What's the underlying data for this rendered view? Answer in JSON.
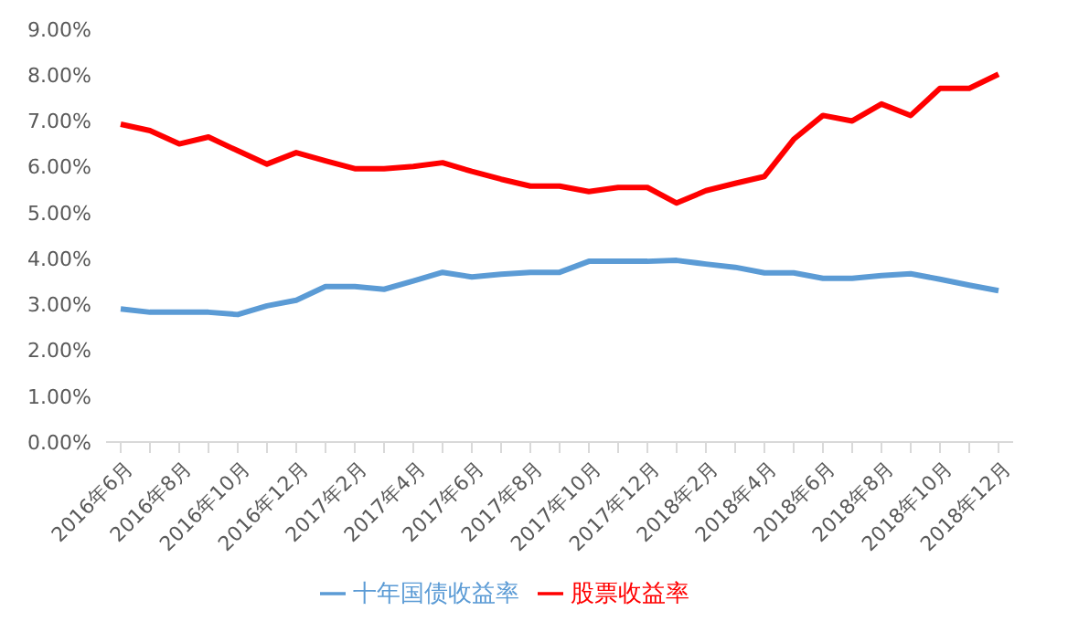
{
  "chart_data": {
    "type": "line",
    "categories": [
      "2016年6月",
      null,
      "2016年8月",
      null,
      "2016年10月",
      null,
      "2016年12月",
      null,
      "2017年2月",
      null,
      "2017年4月",
      null,
      "2017年6月",
      null,
      "2017年8月",
      null,
      "2017年10月",
      null,
      "2017年12月",
      null,
      "2018年2月",
      null,
      "2018年4月",
      null,
      "2018年6月",
      null,
      "2018年8月",
      null,
      "2018年10月",
      null,
      "2018年12月"
    ],
    "series": [
      {
        "name": "十年国债收益率",
        "color": "#5b9bd5",
        "values": [
          2.9,
          2.83,
          2.83,
          2.83,
          2.78,
          2.97,
          3.09,
          3.39,
          3.39,
          3.33,
          3.51,
          3.7,
          3.6,
          3.66,
          3.7,
          3.7,
          3.94,
          3.94,
          3.94,
          3.96,
          3.88,
          3.81,
          3.69,
          3.69,
          3.57,
          3.57,
          3.63,
          3.67,
          3.55,
          3.42,
          3.3
        ]
      },
      {
        "name": "股票收益率",
        "color": "#ff0000",
        "values": [
          6.93,
          6.79,
          6.5,
          6.65,
          6.35,
          6.06,
          6.31,
          6.13,
          5.96,
          5.96,
          6.01,
          6.09,
          5.9,
          5.73,
          5.58,
          5.58,
          5.46,
          5.55,
          5.55,
          5.21,
          5.48,
          5.64,
          5.79,
          6.6,
          7.12,
          7.0,
          7.37,
          7.12,
          7.71,
          7.71,
          8.02
        ]
      }
    ],
    "ylim": [
      0,
      9
    ],
    "yticks": [
      {
        "value": 0,
        "label": "0.00%"
      },
      {
        "value": 1,
        "label": "1.00%"
      },
      {
        "value": 2,
        "label": "2.00%"
      },
      {
        "value": 3,
        "label": "3.00%"
      },
      {
        "value": 4,
        "label": "4.00%"
      },
      {
        "value": 5,
        "label": "5.00%"
      },
      {
        "value": 6,
        "label": "6.00%"
      },
      {
        "value": 7,
        "label": "7.00%"
      },
      {
        "value": 8,
        "label": "8.00%"
      },
      {
        "value": 9,
        "label": "9.00%"
      }
    ],
    "grid": false,
    "legend": "bottom",
    "marker": "none",
    "line_style": "solid"
  }
}
